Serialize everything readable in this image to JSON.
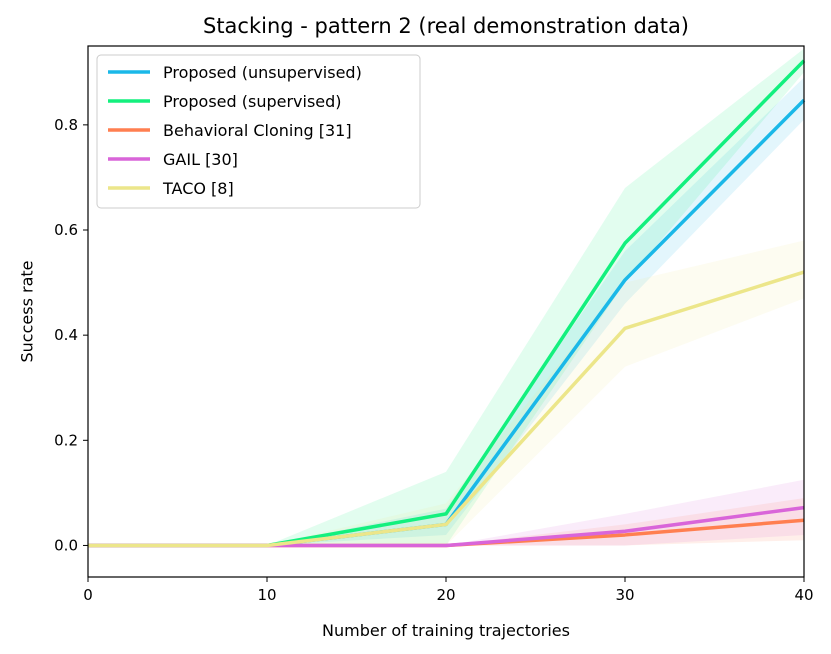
{
  "chart_data": {
    "type": "line",
    "title": "Stacking - pattern 2 (real demonstration data)",
    "xlabel": "Number of training trajectories",
    "ylabel": "Success rate",
    "xlim": [
      0,
      40
    ],
    "ylim": [
      -0.06,
      0.95
    ],
    "x": [
      0,
      10,
      20,
      30,
      40
    ],
    "xticks": [
      "0",
      "10",
      "20",
      "30",
      "40"
    ],
    "yticks": [
      "0.0",
      "0.2",
      "0.4",
      "0.6",
      "0.8"
    ],
    "ytick_values": [
      0.0,
      0.2,
      0.4,
      0.6,
      0.8
    ],
    "grid": false,
    "legend_position": "upper-left",
    "series": [
      {
        "name": "Proposed (unsupervised)",
        "color": "#1ab8e8",
        "values": [
          0.0,
          0.0,
          0.04,
          0.505,
          0.847
        ],
        "lower": [
          0.0,
          0.0,
          0.02,
          0.46,
          0.81
        ],
        "upper": [
          0.0,
          0.0,
          0.07,
          0.56,
          0.89
        ]
      },
      {
        "name": "Proposed (supervised)",
        "color": "#13f07e",
        "values": [
          0.0,
          0.0,
          0.06,
          0.575,
          0.922
        ],
        "lower": [
          0.0,
          0.0,
          0.0,
          0.5,
          0.9
        ],
        "upper": [
          0.0,
          0.0,
          0.14,
          0.68,
          0.945
        ]
      },
      {
        "name": "Behavioral Cloning [31]",
        "color": "#ff7f50",
        "values": [
          0.0,
          0.0,
          0.0,
          0.02,
          0.048
        ],
        "lower": [
          0.0,
          0.0,
          0.0,
          0.0,
          0.01
        ],
        "upper": [
          0.0,
          0.0,
          0.0,
          0.04,
          0.09
        ]
      },
      {
        "name": "GAIL [30]",
        "color": "#d965d9",
        "values": [
          0.0,
          0.0,
          0.0,
          0.027,
          0.072
        ],
        "lower": [
          0.0,
          0.0,
          0.0,
          0.0,
          0.02
        ],
        "upper": [
          0.0,
          0.0,
          0.0,
          0.06,
          0.125
        ]
      },
      {
        "name": "TACO [8]",
        "color": "#ece68a",
        "values": [
          0.0,
          0.0,
          0.04,
          0.413,
          0.52
        ],
        "lower": [
          0.0,
          0.0,
          0.0,
          0.34,
          0.47
        ],
        "upper": [
          0.0,
          0.0,
          0.08,
          0.5,
          0.58
        ]
      }
    ]
  }
}
